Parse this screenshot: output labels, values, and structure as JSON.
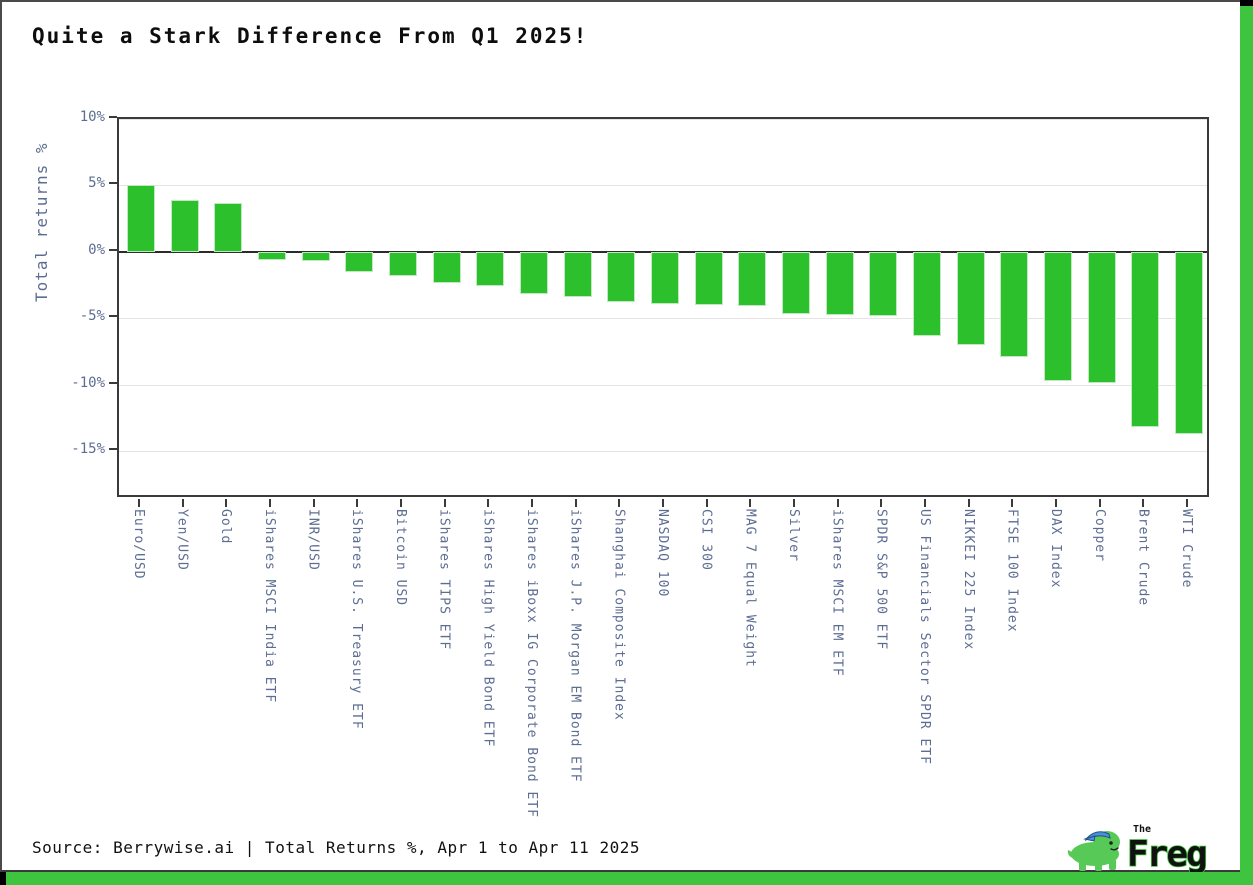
{
  "page": {
    "title": "Quite a Stark Difference From Q1 2025!",
    "source_line": "Source: Berrywise.ai | Total Returns %, Apr 1 to Apr 11 2025",
    "logo": {
      "small_text": "The",
      "name": "Freg"
    }
  },
  "colors": {
    "bar_green": "#2cc12c",
    "frame_green": "#3fc43f",
    "logo_green": "#57c957",
    "logo_cap_blue": "#4a90d9",
    "axis_text": "#5d6d92",
    "grid": "#e4e4e4",
    "spine": "#3a3a3a",
    "zero_line": "#2b2b2b",
    "title_text": "#0d0d0d"
  },
  "chart_data": {
    "type": "bar",
    "title": "Quite a Stark Difference From Q1 2025!",
    "xlabel": "",
    "ylabel": "Total returns %",
    "ylim": [
      -18.6,
      10
    ],
    "yticks": [
      10,
      5,
      0,
      -5,
      -10,
      -15
    ],
    "ytick_labels": [
      "10%",
      "5%",
      "0%",
      "-5%",
      "-10%",
      "-15%"
    ],
    "grid": true,
    "legend": false,
    "bar_color": "#2cc12c",
    "categories": [
      "Euro/USD",
      "Yen/USD",
      "Gold",
      "iShares MSCI India ETF",
      "INR/USD",
      "iShares U.S. Treasury ETF",
      "Bitcoin USD",
      "iShares TIPS ETF",
      "iShares High Yield Bond ETF",
      "iShares iBoxx IG Corporate Bond ETF",
      "iShares J.P. Morgan EM Bond ETF",
      "Shanghai Composite Index",
      "NASDAQ 100",
      "CSI 300",
      "MAG 7 Equal Weight",
      "Silver",
      "iShares MSCI EM ETF",
      "SPDR S&P 500 ETF",
      "US Financials Sector SPDR ETF",
      "NIKKEI 225 Index",
      "FTSE 100 Index",
      "DAX Index",
      "Copper",
      "Brent Crude",
      "WTI Crude"
    ],
    "values": [
      5.0,
      3.9,
      3.7,
      -0.6,
      -0.7,
      -1.5,
      -1.85,
      -2.35,
      -2.6,
      -3.2,
      -3.4,
      -3.8,
      -3.9,
      -4.0,
      -4.1,
      -4.7,
      -4.75,
      -4.85,
      -6.3,
      -7.0,
      -7.9,
      -9.7,
      -9.9,
      -13.2,
      -13.7
    ]
  }
}
